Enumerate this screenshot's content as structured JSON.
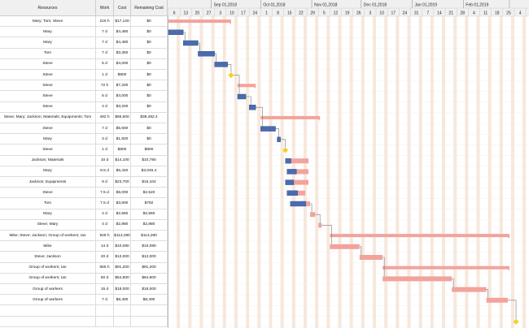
{
  "table": {
    "columns": [
      "Resources",
      "Work",
      "Cost",
      "Remaining Cost"
    ],
    "rows": [
      [
        "Mary; Tom; Steve",
        "216 h",
        "$17,120",
        "$0"
      ],
      [
        "Mary",
        "7 d",
        "$4,480",
        "$0"
      ],
      [
        "Mary",
        "7 d",
        "$4,480",
        "$0"
      ],
      [
        "Tom",
        "7 d",
        "$3,360",
        "$0"
      ],
      [
        "Steve",
        "5 d",
        "$4,000",
        "$0"
      ],
      [
        "Steve",
        "1 d",
        "$800",
        "$0"
      ],
      [
        "Steve",
        "72 h",
        "$7,200",
        "$0"
      ],
      [
        "Steve",
        "5 d",
        "$4,000",
        "$0"
      ],
      [
        "Steve",
        "4 d",
        "$3,200",
        "$0"
      ],
      [
        "Steve; Mary; Jackson; Materials; Equipments; Tom",
        "492 h",
        "$66,600",
        "$38,482.4"
      ],
      [
        "Steve",
        "7 d",
        "$5,600",
        "$0"
      ],
      [
        "Mary",
        "3 d",
        "$1,920",
        "$0"
      ],
      [
        "Steve",
        "1 d",
        "$800",
        "$800"
      ],
      [
        "Jackson; Materials",
        "10 d",
        "$14,100",
        "$10,780"
      ],
      [
        "Mary",
        "8.5 d",
        "$5,440",
        "$3,046.4"
      ],
      [
        "Jackson; Equipments",
        "9 d",
        "$23,700",
        "$15,104"
      ],
      [
        "Steve",
        "7.5 d",
        "$6,000",
        "$2,520"
      ],
      [
        "Tom",
        "7.5 d",
        "$3,600",
        "$792"
      ],
      [
        "Mary",
        "4 d",
        "$2,560",
        "$2,560"
      ],
      [
        "Steve; Mary",
        "4 d",
        "$2,880",
        "$2,880"
      ],
      [
        "Mike; Steve; Jackson; Group of workers; Ian",
        "928 h",
        "$113,280",
        "$113,280"
      ],
      [
        "Mike",
        "14 d",
        "$10,080",
        "$10,080"
      ],
      [
        "Steve; Jackson",
        "20 d",
        "$12,000",
        "$12,000"
      ],
      [
        "Group of workers; Ian",
        "656 h",
        "$91,200",
        "$91,200"
      ],
      [
        "Group of workers; Ian",
        "60 d",
        "$64,800",
        "$64,800"
      ],
      [
        "Group of workers",
        "15 d",
        "$18,000",
        "$18,000"
      ],
      [
        "Group of workers",
        "7 d",
        "$8,400",
        "$8,400"
      ],
      [
        "",
        "",
        "",
        ""
      ],
      [
        "",
        "",
        "",
        ""
      ]
    ]
  },
  "timeline": {
    "months": [
      "Sep 01,2018",
      "Oct 01,2018",
      "Nov 01,2018",
      "Dec 01,2018",
      "Jan 01,2019",
      "Feb 01,2019"
    ],
    "month_dates": [
      "2018-09-01",
      "2018-10-01",
      "2018-11-01",
      "2018-12-01",
      "2019-01-01",
      "2019-02-01",
      "2019-03-01"
    ],
    "weeks": [
      "6",
      "13",
      "20",
      "27",
      "3",
      "10",
      "17",
      "24",
      "1",
      "8",
      "15",
      "22",
      "29",
      "5",
      "12",
      "19",
      "26",
      "3",
      "10",
      "17",
      "24",
      "31",
      "7",
      "14",
      "21",
      "28",
      "4",
      "11",
      "18",
      "25",
      "4"
    ],
    "first_week": "2018-08-06"
  },
  "tasks": [
    {
      "type": "summary",
      "start": "2018-08-06",
      "end": "2018-09-13"
    },
    {
      "type": "task",
      "start": "2018-08-06",
      "end": "2018-08-15",
      "progress": 1
    },
    {
      "type": "task",
      "start": "2018-08-15",
      "end": "2018-08-24",
      "progress": 1
    },
    {
      "type": "task",
      "start": "2018-08-24",
      "end": "2018-09-03",
      "progress": 1
    },
    {
      "type": "task",
      "start": "2018-09-03",
      "end": "2018-09-11",
      "progress": 1
    },
    {
      "type": "milestone",
      "start": "2018-09-13"
    },
    {
      "type": "summary",
      "start": "2018-09-17",
      "end": "2018-09-28"
    },
    {
      "type": "task",
      "start": "2018-09-17",
      "end": "2018-09-22",
      "progress": 1
    },
    {
      "type": "task",
      "start": "2018-09-24",
      "end": "2018-09-28",
      "progress": 1
    },
    {
      "type": "summary",
      "start": "2018-10-01",
      "end": "2018-11-06"
    },
    {
      "type": "task",
      "start": "2018-10-01",
      "end": "2018-10-10",
      "progress": 1
    },
    {
      "type": "task",
      "start": "2018-10-11",
      "end": "2018-10-13",
      "progress": 1
    },
    {
      "type": "milestone",
      "start": "2018-10-16"
    },
    {
      "type": "task",
      "start": "2018-10-16",
      "end": "2018-10-30",
      "progress": 0.24
    },
    {
      "type": "task",
      "start": "2018-10-17",
      "end": "2018-10-30",
      "progress": 0.44
    },
    {
      "type": "task",
      "start": "2018-10-16",
      "end": "2018-10-30",
      "progress": 0.36
    },
    {
      "type": "task",
      "start": "2018-10-17",
      "end": "2018-10-28",
      "progress": 0.58
    },
    {
      "type": "task",
      "start": "2018-10-19",
      "end": "2018-10-31",
      "progress": 0.78
    },
    {
      "type": "task",
      "start": "2018-10-31",
      "end": "2018-11-03",
      "progress": 0
    },
    {
      "type": "task",
      "start": "2018-11-05",
      "end": "2018-11-07",
      "progress": 0
    },
    {
      "type": "summary",
      "start": "2018-11-12",
      "end": "2019-03-01"
    },
    {
      "type": "task",
      "start": "2018-11-12",
      "end": "2018-11-30",
      "progress": 0
    },
    {
      "type": "task",
      "start": "2018-11-30",
      "end": "2018-12-14",
      "progress": 0
    },
    {
      "type": "summary",
      "start": "2018-12-14",
      "end": "2019-03-01"
    },
    {
      "type": "task",
      "start": "2018-12-14",
      "end": "2019-01-25",
      "progress": 0
    },
    {
      "type": "task",
      "start": "2019-01-25",
      "end": "2019-02-15",
      "progress": 0
    },
    {
      "type": "task",
      "start": "2019-02-15",
      "end": "2019-02-28",
      "progress": 0
    },
    null,
    {
      "type": "milestone",
      "start": "2019-03-05"
    }
  ],
  "colors": {
    "task": "#4a6bb0",
    "remaining": "#f2a39b",
    "summary": "#f2a39b",
    "milestone": "#f5d020",
    "weekend": "#f7e8dc",
    "link": "#777777"
  }
}
